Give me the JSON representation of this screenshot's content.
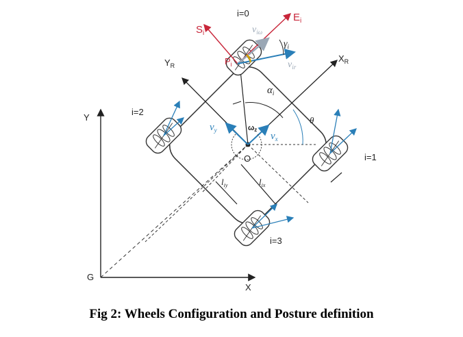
{
  "labels": {
    "frame_x": "X",
    "frame_y": "Y",
    "origin_g": "G",
    "robot_x": "X",
    "robot_x_sub": "R",
    "robot_y": "Y",
    "robot_y_sub": "R",
    "center_o": "O",
    "theta": "θ",
    "alpha": "α",
    "alpha_sub": "i",
    "gamma": "γ",
    "gamma_sub": "i",
    "v_x": "v",
    "v_x_sub": "x",
    "v_y": "v",
    "v_y_sub": "y",
    "omega_z": "ω",
    "omega_z_sub": "z",
    "v_iw": "v",
    "v_iw_sub": "iω",
    "v_ir": "v",
    "v_ir_sub": "ir",
    "l_iy": "l",
    "l_iy_sub": "iy",
    "l_ix": "l",
    "l_ix_sub": "ix",
    "s_i": "S",
    "s_i_sub": "i",
    "e_i": "E",
    "e_i_sub": "i",
    "p_i": "P",
    "p_i_sub": "i",
    "wheel_0": "i=0",
    "wheel_1": "i=1",
    "wheel_2": "i=2",
    "wheel_3": "i=3"
  },
  "caption": "Fig 2: Wheels Configuration and Posture definition",
  "colors": {
    "axis": "#222222",
    "blue_vector": "#2a7fb8",
    "gray_vector": "#9aa7b5",
    "red_frame": "#c8263a",
    "gamma_arc": "#d6a400"
  }
}
